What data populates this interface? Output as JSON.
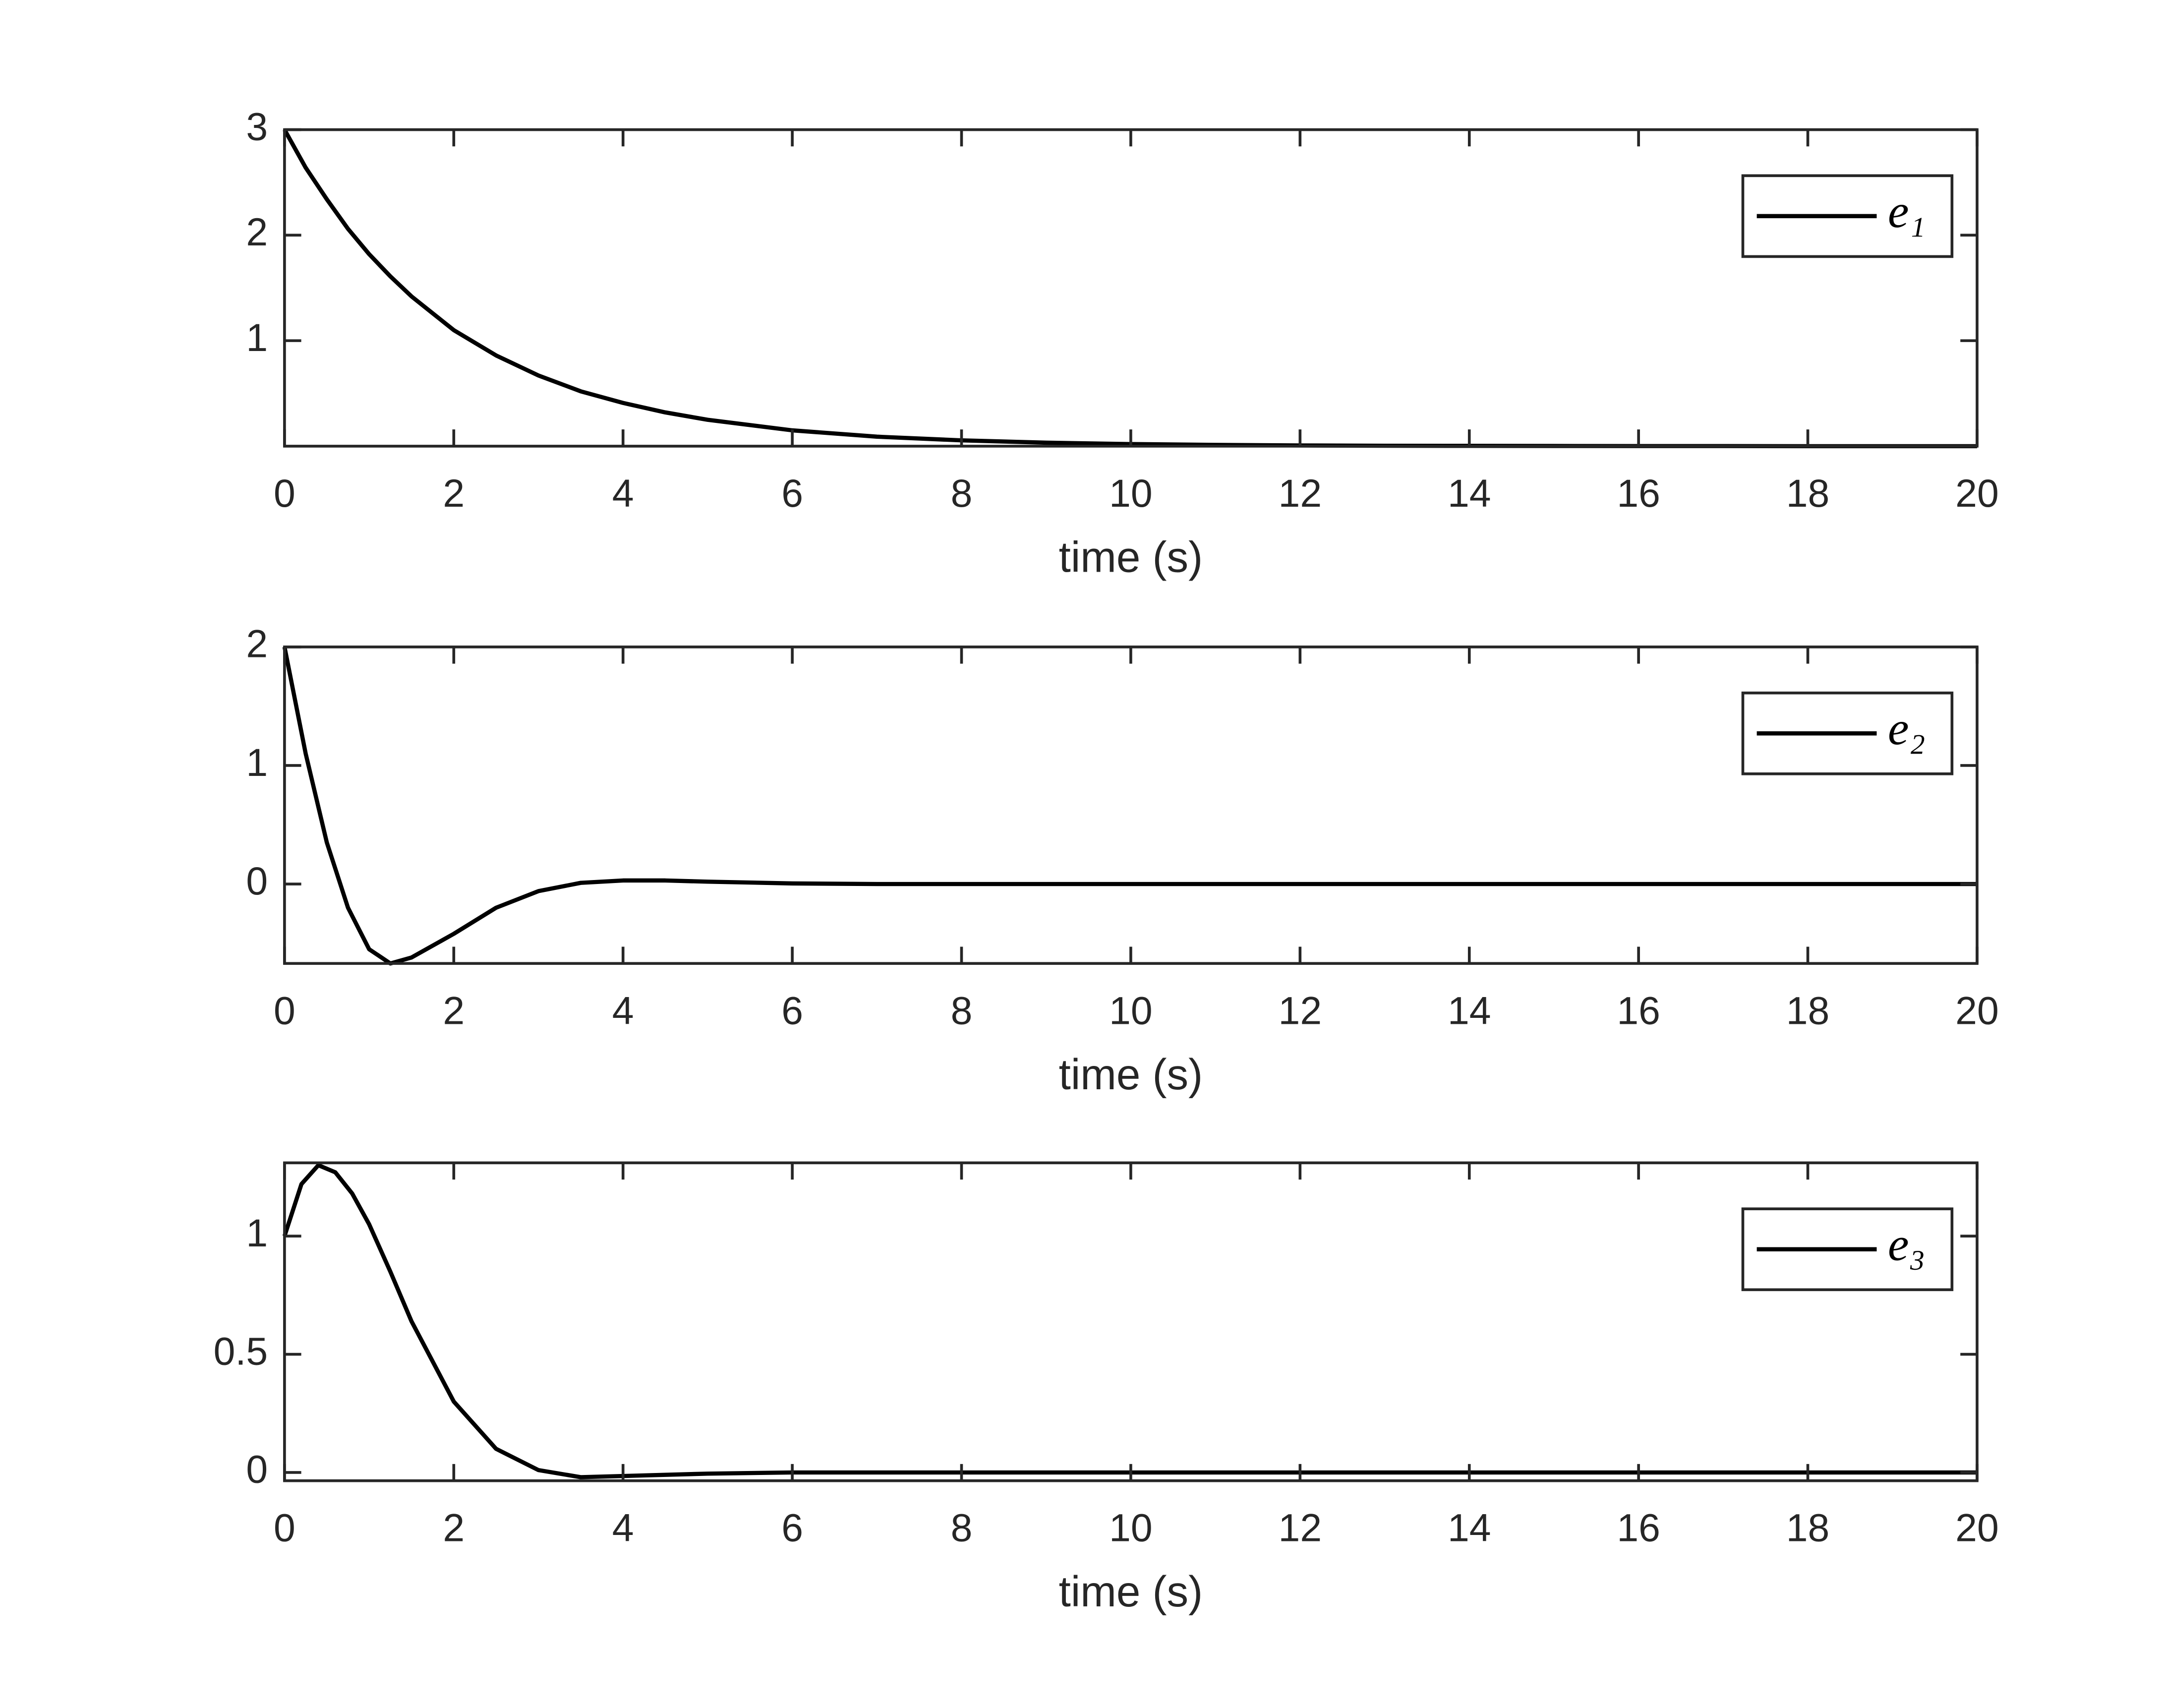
{
  "chart_data": [
    {
      "type": "line",
      "xlabel": "time (s)",
      "legend": "upper right",
      "x": [
        0,
        0.25,
        0.5,
        0.75,
        1,
        1.25,
        1.5,
        2,
        2.5,
        3,
        3.5,
        4,
        4.5,
        5,
        6,
        7,
        8,
        9,
        10,
        11,
        12,
        13,
        14,
        15,
        16,
        17,
        18,
        19,
        20
      ],
      "series": [
        {
          "name": "e₁",
          "color": "#000000",
          "values": [
            3,
            2.64,
            2.34,
            2.06,
            1.82,
            1.61,
            1.42,
            1.1,
            0.86,
            0.67,
            0.52,
            0.41,
            0.32,
            0.25,
            0.15,
            0.09,
            0.055,
            0.033,
            0.02,
            0.012,
            0.007,
            0.004,
            0.003,
            0.002,
            0.001,
            0.001,
            0,
            0,
            0
          ]
        }
      ],
      "xlim": [
        0,
        20
      ],
      "ylim": [
        0,
        3
      ],
      "xticks": [
        0,
        2,
        4,
        6,
        8,
        10,
        12,
        14,
        16,
        18,
        20
      ],
      "yticks": [
        1,
        2,
        3
      ]
    },
    {
      "type": "line",
      "xlabel": "time (s)",
      "legend": "upper right",
      "x": [
        0,
        0.25,
        0.5,
        0.75,
        1,
        1.25,
        1.5,
        2,
        2.5,
        3,
        3.5,
        4,
        4.5,
        5,
        6,
        7,
        8,
        9,
        10,
        11,
        12,
        13,
        14,
        15,
        16,
        17,
        18,
        19,
        20
      ],
      "series": [
        {
          "name": "e₂",
          "color": "#000000",
          "values": [
            2,
            1.1,
            0.35,
            -0.2,
            -0.55,
            -0.67,
            -0.62,
            -0.42,
            -0.2,
            -0.06,
            0.01,
            0.03,
            0.03,
            0.02,
            0.005,
            0,
            0,
            0,
            0,
            0,
            0,
            0,
            0,
            0,
            0,
            0,
            0,
            0,
            0
          ]
        }
      ],
      "xlim": [
        0,
        20
      ],
      "ylim": [
        -0.67,
        2
      ],
      "xticks": [
        0,
        2,
        4,
        6,
        8,
        10,
        12,
        14,
        16,
        18,
        20
      ],
      "yticks": [
        0,
        1,
        2
      ]
    },
    {
      "type": "line",
      "xlabel": "time (s)",
      "legend": "upper right",
      "x": [
        0,
        0.2,
        0.4,
        0.6,
        0.8,
        1,
        1.25,
        1.5,
        2,
        2.5,
        3,
        3.5,
        4,
        5,
        6,
        7,
        8,
        9,
        10,
        11,
        12,
        13,
        14,
        15,
        16,
        17,
        18,
        19,
        20
      ],
      "series": [
        {
          "name": "e₃",
          "color": "#000000",
          "values": [
            1,
            1.22,
            1.3,
            1.27,
            1.18,
            1.05,
            0.85,
            0.64,
            0.3,
            0.1,
            0.01,
            -0.02,
            -0.015,
            -0.005,
            0,
            0,
            0,
            0,
            0,
            0,
            0,
            0,
            0,
            0,
            0,
            0,
            0,
            0,
            0
          ]
        }
      ],
      "xlim": [
        0,
        20
      ],
      "ylim": [
        -0.035,
        1.31
      ],
      "xticks": [
        0,
        2,
        4,
        6,
        8,
        10,
        12,
        14,
        16,
        18,
        20
      ],
      "yticks": [
        0,
        0.5,
        1
      ]
    }
  ]
}
